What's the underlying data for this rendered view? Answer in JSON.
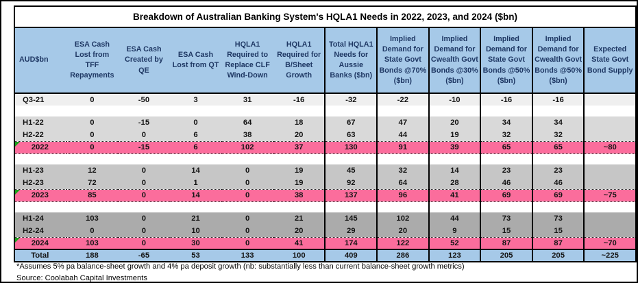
{
  "page": {
    "footnote": "*Assumes 5% pa balance-sheet growth and 4% pa deposit growth (nb: substantially less than current balance-sheet growth metrics)",
    "source": "Source: Coolabah Capital Investments"
  },
  "colors": {
    "header_blue": "#A6C9E8",
    "header_text": "#1F3864",
    "pink": "#FB6D9C",
    "light_gray": "#EFEFEF",
    "gray_2022": "#D9D9D9",
    "gray_2023": "#C6C6C6",
    "gray_2024": "#ABABAB",
    "marker_green": "#1AA01A"
  },
  "chart_data": {
    "type": "table",
    "title": "Breakdown of Australian Banking System's HQLA1 Needs in 2022, 2023, and 2024 ($bn)",
    "columns": [
      "AUD$bn",
      "ESA Cash Lost from TFF Repayments",
      "ESA Cash Created by QE",
      "ESA Cash Lost from QT",
      "HQLA1 Required to Replace CLF Wind-Down",
      "HQLA1 Required for B/Sheet Growth",
      "Total HQLA1 Needs for Aussie Banks ($bn)",
      "Implied Demand for State Govt Bonds @70% ($bn)",
      "Implied Demand for Cwealth Govt Bonds @30% ($bn)",
      "Implied Demand for State Govt Bonds @50% ($bn)",
      "Implied Demand for Cwealth Govt Bonds @50% ($bn)",
      "Expected State Govt Bond Supply"
    ],
    "rows": [
      {
        "label": "Q3-21",
        "row_type": "light",
        "values": [
          "0",
          "-50",
          "3",
          "31",
          "-16",
          "-32",
          "-22",
          "-10",
          "-16",
          "-16",
          ""
        ]
      },
      {
        "row_type": "spacer"
      },
      {
        "label": "H1-22",
        "row_type": "s1",
        "values": [
          "0",
          "-15",
          "0",
          "64",
          "18",
          "67",
          "47",
          "20",
          "34",
          "34",
          ""
        ]
      },
      {
        "label": "H2-22",
        "row_type": "s1",
        "values": [
          "0",
          "0",
          "6",
          "38",
          "20",
          "63",
          "44",
          "19",
          "32",
          "32",
          ""
        ]
      },
      {
        "label": "2022",
        "row_type": "pink",
        "marker": true,
        "values": [
          "0",
          "-15",
          "6",
          "102",
          "37",
          "130",
          "91",
          "39",
          "65",
          "65",
          "~80"
        ]
      },
      {
        "row_type": "spacer"
      },
      {
        "label": "H1-23",
        "row_type": "s2",
        "values": [
          "12",
          "0",
          "14",
          "0",
          "19",
          "45",
          "32",
          "14",
          "23",
          "23",
          ""
        ]
      },
      {
        "label": "H2-23",
        "row_type": "s2",
        "values": [
          "72",
          "0",
          "1",
          "0",
          "19",
          "92",
          "64",
          "28",
          "46",
          "46",
          ""
        ]
      },
      {
        "label": "2023",
        "row_type": "pink",
        "marker": true,
        "values": [
          "85",
          "0",
          "14",
          "0",
          "38",
          "137",
          "96",
          "41",
          "69",
          "69",
          "~75"
        ]
      },
      {
        "row_type": "spacer"
      },
      {
        "label": "H1-24",
        "row_type": "s3",
        "values": [
          "103",
          "0",
          "21",
          "0",
          "21",
          "145",
          "102",
          "44",
          "73",
          "73",
          ""
        ]
      },
      {
        "label": "H2-24",
        "row_type": "s3",
        "values": [
          "0",
          "0",
          "10",
          "0",
          "20",
          "29",
          "20",
          "9",
          "15",
          "15",
          ""
        ]
      },
      {
        "label": "2024",
        "row_type": "pink",
        "marker": true,
        "values": [
          "103",
          "0",
          "30",
          "0",
          "41",
          "174",
          "122",
          "52",
          "87",
          "87",
          "~70"
        ]
      },
      {
        "label": "Total",
        "row_type": "total",
        "values": [
          "188",
          "-65",
          "53",
          "133",
          "100",
          "409",
          "286",
          "123",
          "205",
          "205",
          "~225"
        ]
      }
    ]
  }
}
